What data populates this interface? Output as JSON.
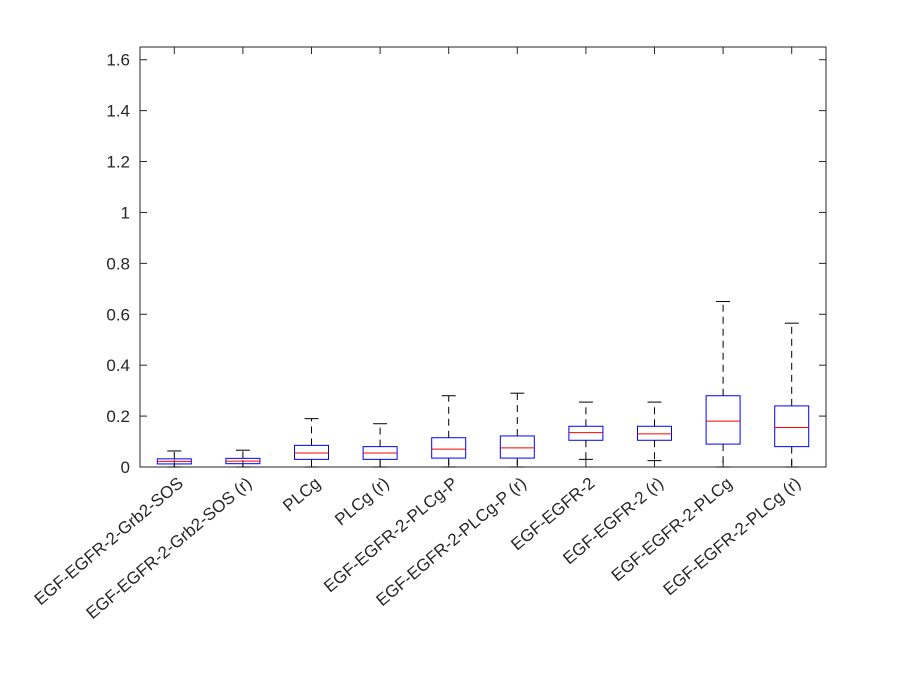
{
  "chart_data": {
    "type": "boxplot",
    "title": "",
    "xlabel": "",
    "ylabel": "",
    "ylim": [
      0,
      1.65
    ],
    "yticks": [
      0,
      0.2,
      0.4,
      0.6,
      0.8,
      1,
      1.2,
      1.4,
      1.6
    ],
    "ytick_labels": [
      "0",
      "0.2",
      "0.4",
      "0.6",
      "0.8",
      "1",
      "1.2",
      "1.4",
      "1.6"
    ],
    "categories": [
      "EGF-EGFR-2-Grb2-SOS",
      "EGF-EGFR-2-Grb2-SOS (r)",
      "PLCg",
      "PLCg (r)",
      "EGF-EGFR-2-PLCg-P",
      "EGF-EGFR-2-PLCg-P (r)",
      "EGF-EGFR-2",
      "EGF-EGFR-2 (r)",
      "EGF-EGFR-2-PLCg",
      "EGF-EGFR-2-PLCg (r)"
    ],
    "boxes": [
      {
        "whisker_low": 0.0,
        "q1": 0.012,
        "median": 0.022,
        "q3": 0.032,
        "whisker_high": 0.063
      },
      {
        "whisker_low": 0.0,
        "q1": 0.013,
        "median": 0.023,
        "q3": 0.034,
        "whisker_high": 0.066
      },
      {
        "whisker_low": 0.0,
        "q1": 0.03,
        "median": 0.055,
        "q3": 0.085,
        "whisker_high": 0.19
      },
      {
        "whisker_low": 0.0,
        "q1": 0.03,
        "median": 0.055,
        "q3": 0.08,
        "whisker_high": 0.17
      },
      {
        "whisker_low": 0.0,
        "q1": 0.035,
        "median": 0.07,
        "q3": 0.115,
        "whisker_high": 0.28
      },
      {
        "whisker_low": 0.0,
        "q1": 0.035,
        "median": 0.075,
        "q3": 0.122,
        "whisker_high": 0.29
      },
      {
        "whisker_low": 0.03,
        "q1": 0.105,
        "median": 0.135,
        "q3": 0.16,
        "whisker_high": 0.255
      },
      {
        "whisker_low": 0.025,
        "q1": 0.105,
        "median": 0.13,
        "q3": 0.16,
        "whisker_high": 0.255
      },
      {
        "whisker_low": 0.0,
        "q1": 0.09,
        "median": 0.18,
        "q3": 0.28,
        "whisker_high": 0.65
      },
      {
        "whisker_low": 0.0,
        "q1": 0.08,
        "median": 0.155,
        "q3": 0.24,
        "whisker_high": 0.565
      }
    ],
    "colors": {
      "box": "#0000ff",
      "median": "#ff0000",
      "whisker": "#000000",
      "axis": "#262626"
    },
    "grid": false
  }
}
